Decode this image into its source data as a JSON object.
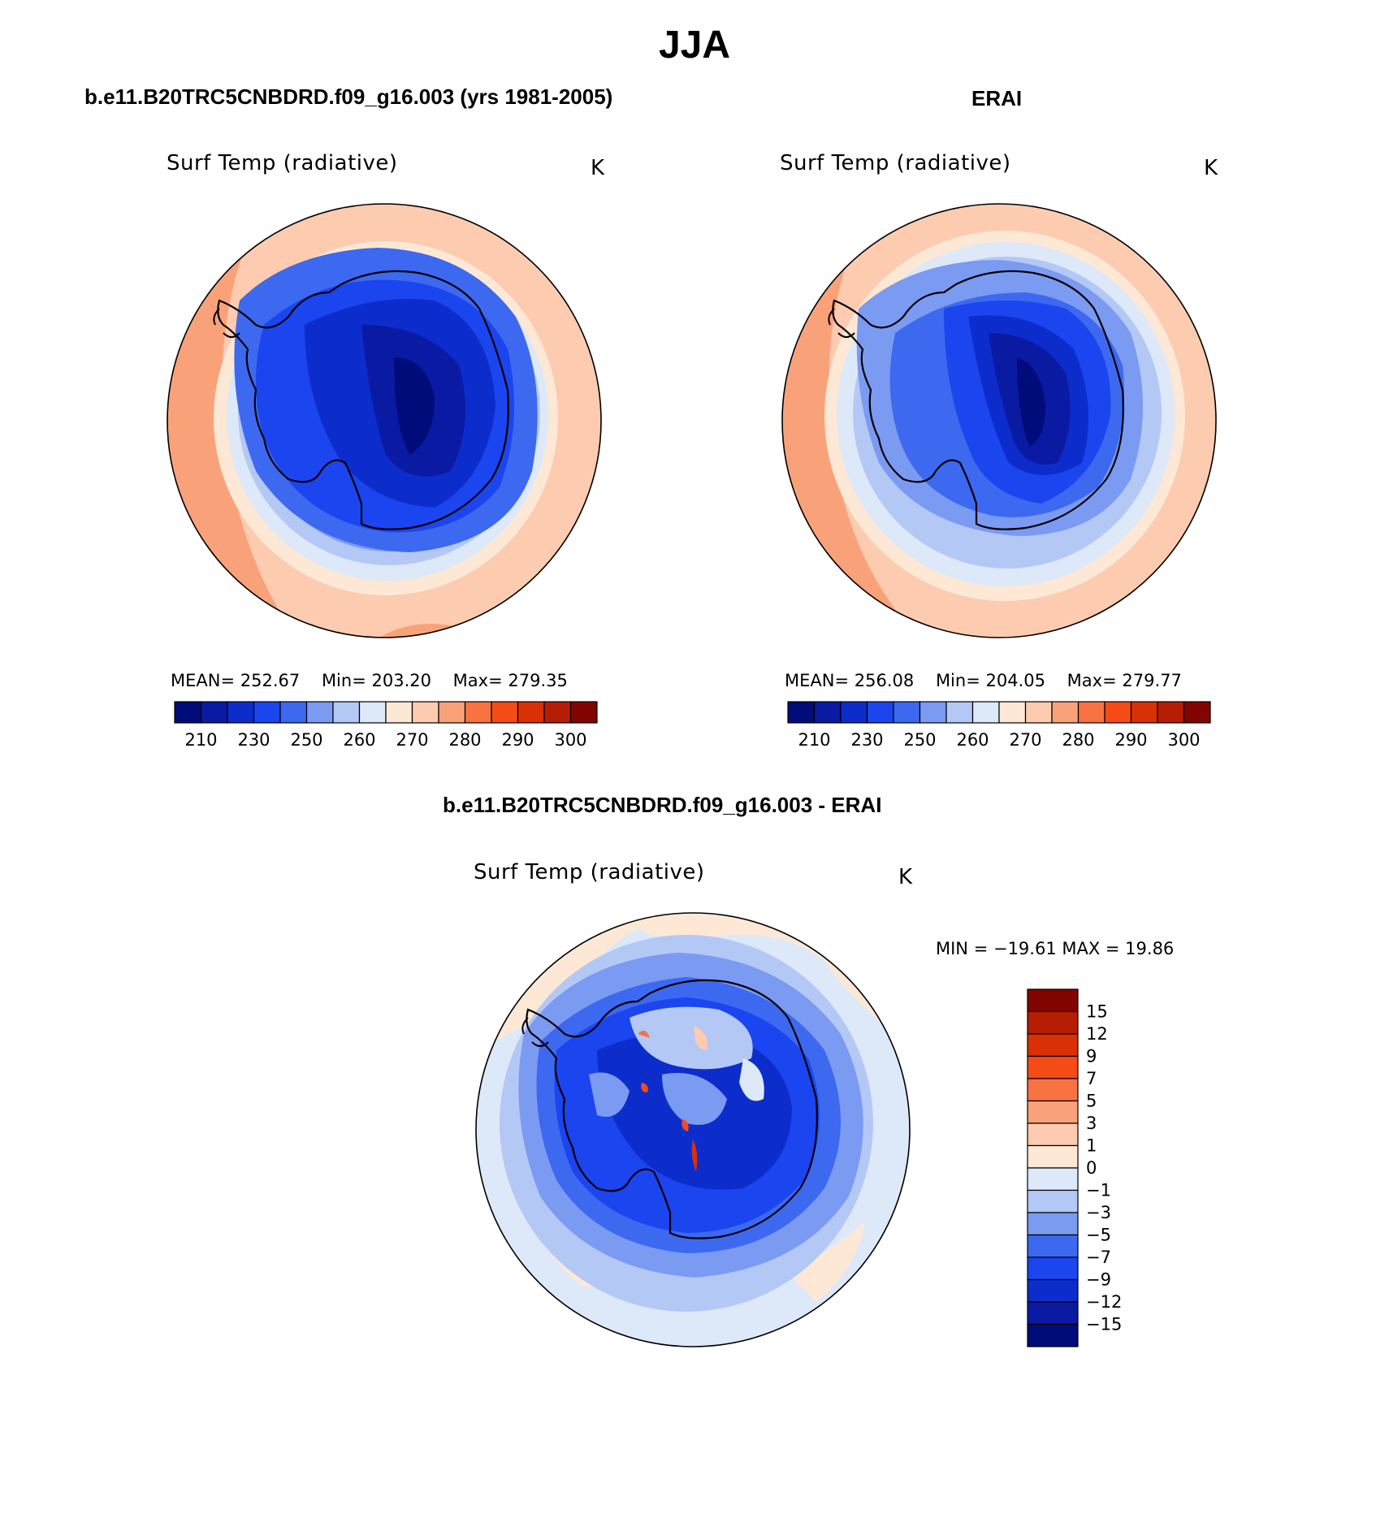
{
  "figure": {
    "title": "JJA"
  },
  "panels": [
    {
      "title": "b.e11.B20TRC5CNBDRD.f09_g16.003 (yrs 1981-2005)",
      "variable": "Surf Temp (radiative)",
      "units": "K",
      "stats": {
        "mean_label": "MEAN=",
        "mean": "252.67",
        "min_label": "Min=",
        "min": "203.20",
        "max_label": "Max=",
        "max": "279.35"
      }
    },
    {
      "title": "ERAI",
      "variable": "Surf Temp (radiative)",
      "units": "K",
      "stats": {
        "mean_label": "MEAN=",
        "mean": "256.08",
        "min_label": "Min=",
        "min": "204.05",
        "max_label": "Max=",
        "max": "279.77"
      }
    },
    {
      "title": "b.e11.B20TRC5CNBDRD.f09_g16.003 - ERAI",
      "variable": "Surf Temp (radiative)",
      "units": "K",
      "stats_text": "MIN = −19.61  MAX =   19.86"
    }
  ],
  "colorbar_abs": {
    "colors": [
      "#000c7a",
      "#0a1aa3",
      "#0d2ccc",
      "#1b45ee",
      "#3d68f0",
      "#7b9af2",
      "#b4c8f6",
      "#dde8f8",
      "#fde8d6",
      "#fccbb0",
      "#f9a27a",
      "#f87242",
      "#f54b16",
      "#da3005",
      "#b51e02",
      "#820400"
    ],
    "tick_labels": [
      "210",
      "230",
      "250",
      "260",
      "270",
      "280",
      "290",
      "300"
    ]
  },
  "colorbar_diff": {
    "colors": [
      "#000c7a",
      "#0a1aa3",
      "#0d2ccc",
      "#1b45ee",
      "#3d68f0",
      "#7b9af2",
      "#b4c8f6",
      "#dde8f8",
      "#fde8d6",
      "#fccbb0",
      "#f9a27a",
      "#f87242",
      "#f54b16",
      "#da3005",
      "#b51e02",
      "#820400"
    ],
    "tick_labels": [
      "15",
      "12",
      "9",
      "7",
      "5",
      "3",
      "1",
      "0",
      "−1",
      "−3",
      "−5",
      "−7",
      "−9",
      "−12",
      "−15"
    ]
  }
}
